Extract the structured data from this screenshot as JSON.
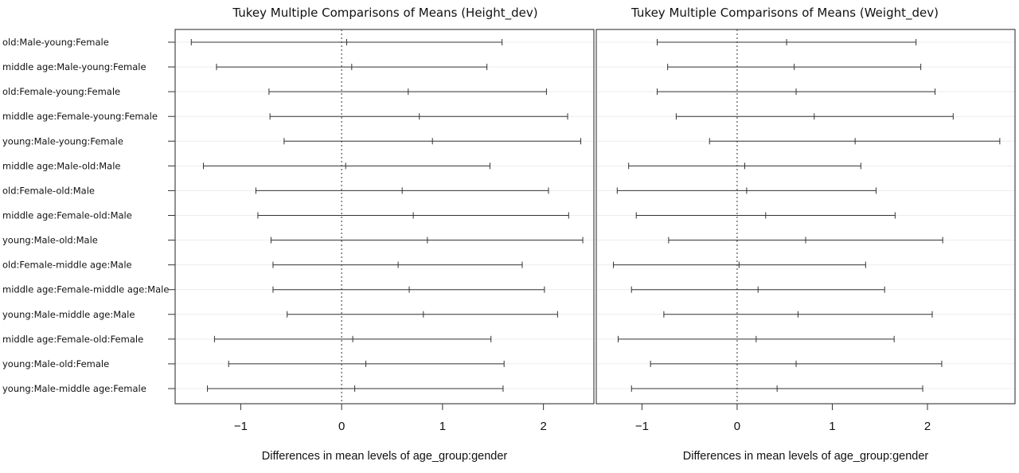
{
  "chart_data": [
    {
      "type": "interval",
      "title": "Tukey Multiple Comparisons of Means (Height_dev)",
      "xlabel": "Differences in mean levels of age_group:gender",
      "xlim": [
        -1.65,
        2.5
      ],
      "xticks": [
        -1,
        0,
        1,
        2
      ],
      "xtick_labels": [
        "−1",
        "0",
        "1",
        "2"
      ],
      "reference_line": 0,
      "categories": [
        "old:Male-young:Female",
        "middle age:Male-young:Female",
        "old:Female-young:Female",
        "middle age:Female-young:Female",
        "young:Male-young:Female",
        "middle age:Male-old:Male",
        "old:Female-old:Male",
        "middle age:Female-old:Male",
        "young:Male-old:Male",
        "old:Female-middle age:Male",
        "middle age:Female-middle age:Male",
        "young:Male-middle age:Male",
        "middle age:Female-old:Female",
        "young:Male-old:Female",
        "young:Male-middle age:Female"
      ],
      "lower": [
        -1.49,
        -1.24,
        -0.72,
        -0.71,
        -0.57,
        -1.37,
        -0.85,
        -0.83,
        -0.7,
        -0.68,
        -0.68,
        -0.54,
        -1.26,
        -1.12,
        -1.33
      ],
      "estimate": [
        0.05,
        0.1,
        0.66,
        0.77,
        0.9,
        0.04,
        0.6,
        0.71,
        0.85,
        0.56,
        0.67,
        0.81,
        0.11,
        0.24,
        0.13
      ],
      "upper": [
        1.59,
        1.44,
        2.03,
        2.24,
        2.37,
        1.47,
        2.05,
        2.25,
        2.39,
        1.79,
        2.01,
        2.14,
        1.48,
        1.61,
        1.6
      ]
    },
    {
      "type": "interval",
      "title": "Tukey Multiple Comparisons of Means (Weight_dev)",
      "xlabel": "Differences in mean levels of age_group:gender",
      "xlim": [
        -1.48,
        2.92
      ],
      "xticks": [
        -1,
        0,
        1,
        2
      ],
      "xtick_labels": [
        "−1",
        "0",
        "1",
        "2"
      ],
      "reference_line": 0,
      "lower": [
        -0.84,
        -0.73,
        -0.84,
        -0.64,
        -0.29,
        -1.14,
        -1.26,
        -1.06,
        -0.72,
        -1.3,
        -1.11,
        -0.77,
        -1.25,
        -0.91,
        -1.11
      ],
      "estimate": [
        0.52,
        0.6,
        0.62,
        0.81,
        1.24,
        0.08,
        0.1,
        0.3,
        0.72,
        0.02,
        0.22,
        0.64,
        0.2,
        0.62,
        0.42
      ],
      "upper": [
        1.88,
        1.93,
        2.08,
        2.27,
        2.76,
        1.3,
        1.46,
        1.66,
        2.16,
        1.35,
        1.55,
        2.05,
        1.65,
        2.15,
        1.95
      ]
    }
  ]
}
